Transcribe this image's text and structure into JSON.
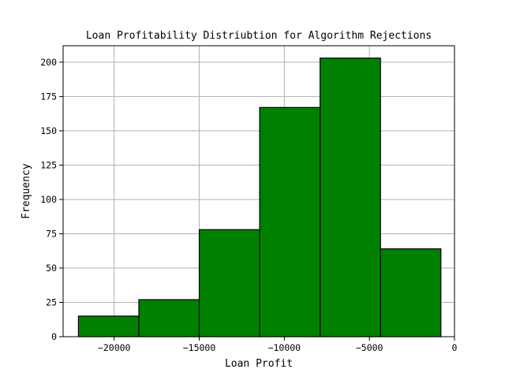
{
  "chart_data": {
    "type": "bar",
    "title": "Loan Profitability Distriubtion for Algorithm Rejections",
    "xlabel": "Loan Profit",
    "ylabel": "Frequency",
    "xlim": [
      -23000,
      0
    ],
    "ylim": [
      0,
      212
    ],
    "xticks": [
      -20000,
      -15000,
      -10000,
      -5000,
      0
    ],
    "xtick_labels": [
      "−20000",
      "−15000",
      "−10000",
      "−5000",
      "0"
    ],
    "yticks": [
      0,
      25,
      50,
      75,
      100,
      125,
      150,
      175,
      200
    ],
    "ytick_labels": [
      "0",
      "25",
      "50",
      "75",
      "100",
      "125",
      "150",
      "175",
      "200"
    ],
    "grid": true,
    "bar_color": "#008000",
    "bins": [
      {
        "x0": -22100,
        "x1": -18550,
        "value": 15
      },
      {
        "x0": -18550,
        "x1": -15000,
        "value": 27
      },
      {
        "x0": -15000,
        "x1": -11450,
        "value": 78
      },
      {
        "x0": -11450,
        "x1": -7900,
        "value": 167
      },
      {
        "x0": -7900,
        "x1": -4350,
        "value": 203
      },
      {
        "x0": -4350,
        "x1": -800,
        "value": 64
      }
    ]
  }
}
